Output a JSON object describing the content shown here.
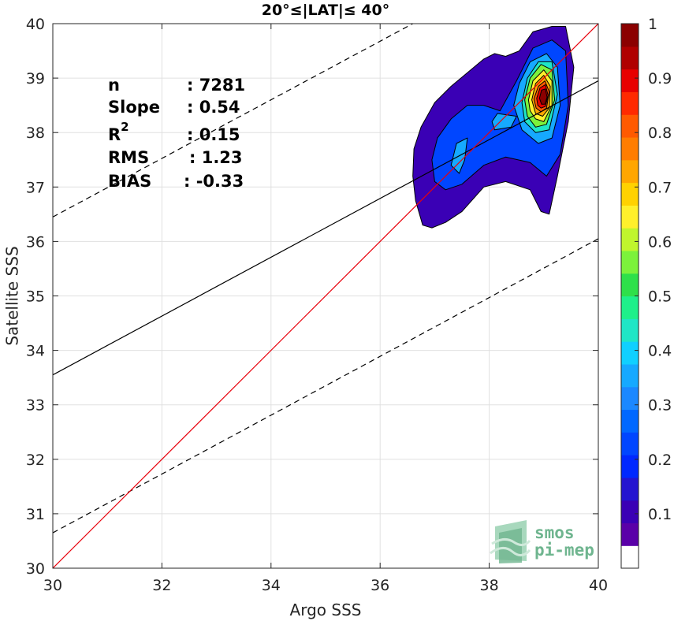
{
  "chart_data": {
    "type": "scatter",
    "title": "20°≤|LAT|≤ 40°",
    "xlabel": "Argo SSS",
    "ylabel": "Satellite SSS",
    "xlim": [
      30,
      40
    ],
    "ylim": [
      30,
      40
    ],
    "xticks": [
      "30",
      "32",
      "34",
      "36",
      "38",
      "40"
    ],
    "yticks": [
      "30",
      "31",
      "32",
      "33",
      "34",
      "35",
      "36",
      "37",
      "38",
      "39",
      "40"
    ],
    "grid": true,
    "stats": [
      {
        "label": "n",
        "value": ": 7281"
      },
      {
        "label": "Slope",
        "value": ": 0.54"
      },
      {
        "label": "R",
        "sup": "2",
        "value": ": 0.15"
      },
      {
        "label": "RMS",
        "value": ": 1.23"
      },
      {
        "label": "BIAS",
        "value": ": -0.33"
      }
    ],
    "lines": {
      "identity": {
        "color": "#e8000b",
        "points": [
          [
            30,
            30
          ],
          [
            40,
            40
          ]
        ]
      },
      "regression": {
        "color": "#000000",
        "points": [
          [
            30,
            33.55
          ],
          [
            40,
            38.95
          ]
        ]
      },
      "upper_bound": {
        "color": "#000000",
        "dashed": true,
        "points": [
          [
            30,
            36.45
          ],
          [
            36.6,
            40
          ]
        ]
      },
      "lower_bound": {
        "color": "#000000",
        "dashed": true,
        "points": [
          [
            30,
            30.65
          ],
          [
            40,
            36.05
          ]
        ]
      }
    },
    "contours": [
      {
        "level": 0.05,
        "color": "#3a00b5",
        "points": [
          [
            36.78,
            36.3
          ],
          [
            36.65,
            36.75
          ],
          [
            36.6,
            37.2
          ],
          [
            36.62,
            37.7
          ],
          [
            36.75,
            38.1
          ],
          [
            37.0,
            38.55
          ],
          [
            37.3,
            38.85
          ],
          [
            37.6,
            39.1
          ],
          [
            37.9,
            39.35
          ],
          [
            38.1,
            39.45
          ],
          [
            38.3,
            39.4
          ],
          [
            38.55,
            39.5
          ],
          [
            38.8,
            39.85
          ],
          [
            39.15,
            39.95
          ],
          [
            39.4,
            39.95
          ],
          [
            39.55,
            39.2
          ],
          [
            39.45,
            38.2
          ],
          [
            39.25,
            37.2
          ],
          [
            39.1,
            36.5
          ],
          [
            38.95,
            36.55
          ],
          [
            38.75,
            36.95
          ],
          [
            38.3,
            37.1
          ],
          [
            37.9,
            37.0
          ],
          [
            37.5,
            36.55
          ],
          [
            37.2,
            36.35
          ],
          [
            36.95,
            36.25
          ]
        ]
      },
      {
        "level": 0.2,
        "color": "#0046ff",
        "points": [
          [
            37.0,
            37.1
          ],
          [
            36.95,
            37.5
          ],
          [
            37.05,
            37.9
          ],
          [
            37.3,
            38.25
          ],
          [
            37.6,
            38.5
          ],
          [
            37.9,
            38.5
          ],
          [
            38.2,
            38.4
          ],
          [
            38.5,
            38.95
          ],
          [
            38.8,
            39.55
          ],
          [
            39.15,
            39.7
          ],
          [
            39.4,
            39.5
          ],
          [
            39.45,
            38.5
          ],
          [
            39.3,
            37.6
          ],
          [
            39.05,
            37.2
          ],
          [
            38.75,
            37.45
          ],
          [
            38.3,
            37.55
          ],
          [
            37.9,
            37.4
          ],
          [
            37.5,
            37.05
          ],
          [
            37.2,
            36.95
          ]
        ]
      },
      {
        "level": 0.35,
        "color": "#16a9ff",
        "points": [
          [
            37.3,
            37.4
          ],
          [
            37.4,
            37.8
          ],
          [
            37.6,
            37.9
          ],
          [
            37.55,
            37.5
          ],
          [
            37.45,
            37.25
          ]
        ]
      },
      {
        "level": 0.3,
        "color": "#16a9ff",
        "points": [
          [
            38.1,
            38.05
          ],
          [
            38.05,
            38.2
          ],
          [
            38.15,
            38.35
          ],
          [
            38.5,
            38.3
          ],
          [
            38.4,
            38.1
          ]
        ]
      },
      {
        "level": 0.3,
        "color": "#16a9ff",
        "points": [
          [
            38.45,
            38.5
          ],
          [
            38.55,
            38.9
          ],
          [
            38.75,
            39.3
          ],
          [
            39.05,
            39.45
          ],
          [
            39.25,
            39.2
          ],
          [
            39.3,
            38.5
          ],
          [
            39.15,
            37.9
          ],
          [
            38.9,
            37.8
          ],
          [
            38.6,
            38.05
          ]
        ]
      },
      {
        "level": 0.45,
        "color": "#1fe6c6",
        "points": [
          [
            38.6,
            38.55
          ],
          [
            38.7,
            39.0
          ],
          [
            38.9,
            39.3
          ],
          [
            39.15,
            39.3
          ],
          [
            39.25,
            38.7
          ],
          [
            39.1,
            38.05
          ],
          [
            38.85,
            38.0
          ],
          [
            38.65,
            38.2
          ]
        ]
      },
      {
        "level": 0.55,
        "color": "#7cf23b",
        "points": [
          [
            38.65,
            38.6
          ],
          [
            38.75,
            39.0
          ],
          [
            38.95,
            39.25
          ],
          [
            39.15,
            39.15
          ],
          [
            39.2,
            38.6
          ],
          [
            39.05,
            38.15
          ],
          [
            38.85,
            38.1
          ],
          [
            38.7,
            38.3
          ]
        ]
      },
      {
        "level": 0.65,
        "color": "#fff02b",
        "points": [
          [
            38.72,
            38.6
          ],
          [
            38.8,
            38.95
          ],
          [
            39.0,
            39.15
          ],
          [
            39.15,
            38.95
          ],
          [
            39.15,
            38.5
          ],
          [
            39.0,
            38.2
          ],
          [
            38.85,
            38.25
          ],
          [
            38.75,
            38.4
          ]
        ]
      },
      {
        "level": 0.7,
        "color": "#ffa600",
        "points": [
          [
            38.78,
            38.6
          ],
          [
            38.85,
            38.9
          ],
          [
            39.0,
            39.05
          ],
          [
            39.12,
            38.85
          ],
          [
            39.1,
            38.45
          ],
          [
            38.98,
            38.3
          ],
          [
            38.85,
            38.35
          ]
        ]
      },
      {
        "level": 0.8,
        "color": "#ff5a00",
        "points": [
          [
            38.82,
            38.62
          ],
          [
            38.9,
            38.85
          ],
          [
            39.02,
            38.95
          ],
          [
            39.1,
            38.75
          ],
          [
            39.05,
            38.45
          ],
          [
            38.95,
            38.38
          ],
          [
            38.86,
            38.45
          ]
        ]
      },
      {
        "level": 0.9,
        "color": "#e80000",
        "points": [
          [
            38.87,
            38.63
          ],
          [
            38.93,
            38.82
          ],
          [
            39.03,
            38.88
          ],
          [
            39.08,
            38.68
          ],
          [
            39.03,
            38.48
          ],
          [
            38.95,
            38.45
          ],
          [
            38.89,
            38.5
          ]
        ]
      },
      {
        "level": 1.0,
        "color": "#8b0000",
        "points": [
          [
            38.92,
            38.63
          ],
          [
            38.96,
            38.78
          ],
          [
            39.03,
            38.8
          ],
          [
            39.06,
            38.65
          ],
          [
            39.02,
            38.52
          ],
          [
            38.96,
            38.52
          ]
        ]
      }
    ],
    "colorbar": {
      "range": [
        0,
        1
      ],
      "ticks": [
        "0.1",
        "0.2",
        "0.3",
        "0.4",
        "0.5",
        "0.6",
        "0.7",
        "0.8",
        "0.9",
        "1"
      ],
      "colors": [
        "#ffffff",
        "#5a00a8",
        "#3a00b5",
        "#2414d0",
        "#0028ff",
        "#0046ff",
        "#0068ff",
        "#1b88ff",
        "#16a9ff",
        "#10d0ff",
        "#1fe6c6",
        "#1ef08a",
        "#2ee04a",
        "#7cf23b",
        "#c0f52d",
        "#fff02b",
        "#ffd200",
        "#ffa600",
        "#ff7d00",
        "#ff5a00",
        "#ff2a00",
        "#e80000",
        "#b00000",
        "#8b0000"
      ]
    }
  },
  "logo": {
    "line1": "smos",
    "line2": "pi-mep"
  }
}
